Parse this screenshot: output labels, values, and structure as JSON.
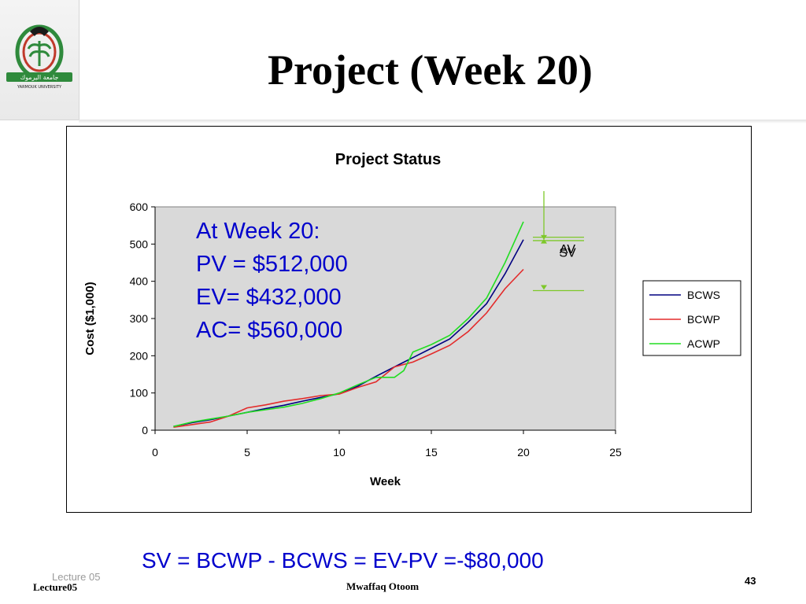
{
  "slide": {
    "title": "Project (Week 20)",
    "formula": "SV = BCWP - BCWS = EV-PV =-$80,000"
  },
  "logo": {
    "arabic_text": "جامعة اليرموك",
    "english_text": "YARMOUK UNIVERSITY",
    "colors": {
      "green": "#2f8a3c",
      "red": "#c0392b",
      "dark": "#1a1a1a"
    }
  },
  "footer": {
    "lecture_small": "Lecture 05",
    "lecture": "Lecture05",
    "author": "Mwaffaq Otoom",
    "page_number": "43"
  },
  "annotation": {
    "lines": [
      "At Week 20:",
      "PV = $512,000",
      "EV= $432,000",
      "AC= $560,000"
    ],
    "av_label": "AV",
    "sv_label": "SV",
    "marker_color": "#7ec82a"
  },
  "chart_data": {
    "type": "line",
    "title": "Project Status",
    "xlabel": "Week",
    "ylabel": "Cost ($1,000)",
    "xlim": [
      0,
      25
    ],
    "ylim": [
      0,
      600
    ],
    "x_ticks": [
      0,
      5,
      10,
      15,
      20,
      25
    ],
    "y_ticks": [
      0,
      100,
      200,
      300,
      400,
      500,
      600
    ],
    "grid": false,
    "plot_background": "#d9d9d9",
    "legend_position": "right",
    "series": [
      {
        "name": "BCWS",
        "color": "#000080",
        "x": [
          1,
          2,
          3,
          4,
          5,
          6,
          7,
          8,
          9,
          10,
          11,
          12,
          13,
          14,
          15,
          16,
          17,
          18,
          19,
          20
        ],
        "y": [
          10,
          20,
          28,
          38,
          48,
          58,
          67,
          78,
          88,
          98,
          118,
          145,
          170,
          195,
          220,
          245,
          290,
          340,
          420,
          512
        ]
      },
      {
        "name": "BCWP",
        "color": "#e32b2b",
        "x": [
          1,
          2,
          3,
          4,
          5,
          6,
          7,
          8,
          9,
          10,
          11,
          12,
          13,
          14,
          15,
          16,
          17,
          18,
          19,
          20
        ],
        "y": [
          8,
          15,
          22,
          38,
          60,
          68,
          78,
          85,
          93,
          97,
          115,
          130,
          170,
          183,
          205,
          228,
          265,
          315,
          380,
          432
        ]
      },
      {
        "name": "ACWP",
        "color": "#22dd22",
        "x": [
          1,
          2,
          3,
          4,
          5,
          6,
          7,
          8,
          9,
          10,
          11,
          12,
          13,
          13.5,
          14,
          15,
          16,
          17,
          18,
          19,
          20
        ],
        "y": [
          10,
          22,
          30,
          38,
          48,
          55,
          62,
          72,
          85,
          100,
          122,
          142,
          142,
          160,
          210,
          230,
          255,
          300,
          355,
          450,
          560
        ]
      }
    ]
  }
}
